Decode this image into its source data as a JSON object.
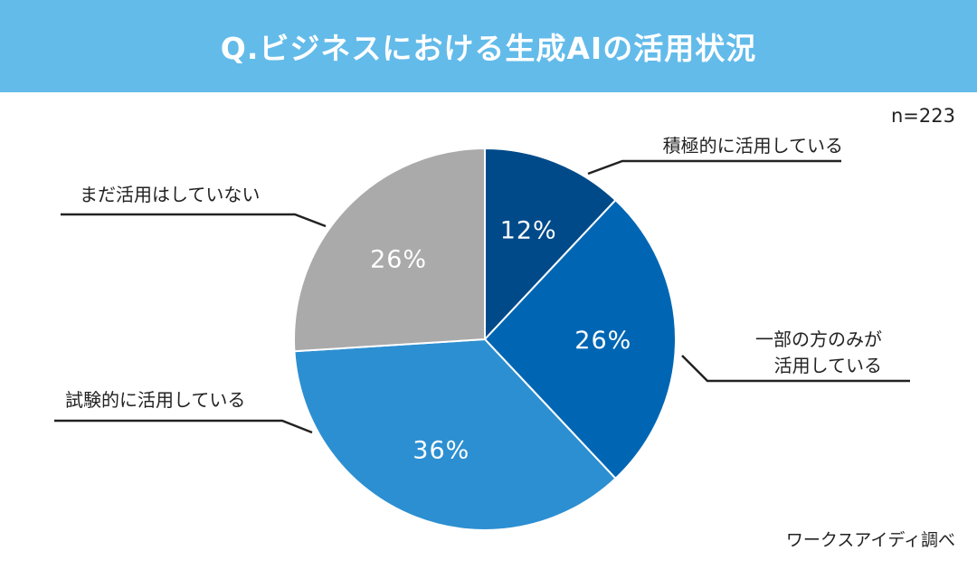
{
  "header": {
    "title": "Q.ビジネスにおける生成AIの活用状況",
    "background": "#63BBEA"
  },
  "sample_size": "n=223",
  "source": "ワークスアイディ調べ",
  "chart_data": {
    "type": "pie",
    "title": "Q.ビジネスにおける生成AIの活用状況",
    "unit": "%",
    "start_angle_deg": 0,
    "direction": "clockwise",
    "slices": [
      {
        "label_lines": [
          "積極的に活用している"
        ],
        "value": 12,
        "value_label": "12%",
        "color": "#004A8A"
      },
      {
        "label_lines": [
          "一部の方のみが",
          "活用している"
        ],
        "value": 26,
        "value_label": "26%",
        "color": "#0066B4"
      },
      {
        "label_lines": [
          "試験的に活用している"
        ],
        "value": 36,
        "value_label": "36%",
        "color": "#2C8FD1"
      },
      {
        "label_lines": [
          "まだ活用はしていない"
        ],
        "value": 26,
        "value_label": "26%",
        "color": "#AAAAAA"
      }
    ]
  }
}
